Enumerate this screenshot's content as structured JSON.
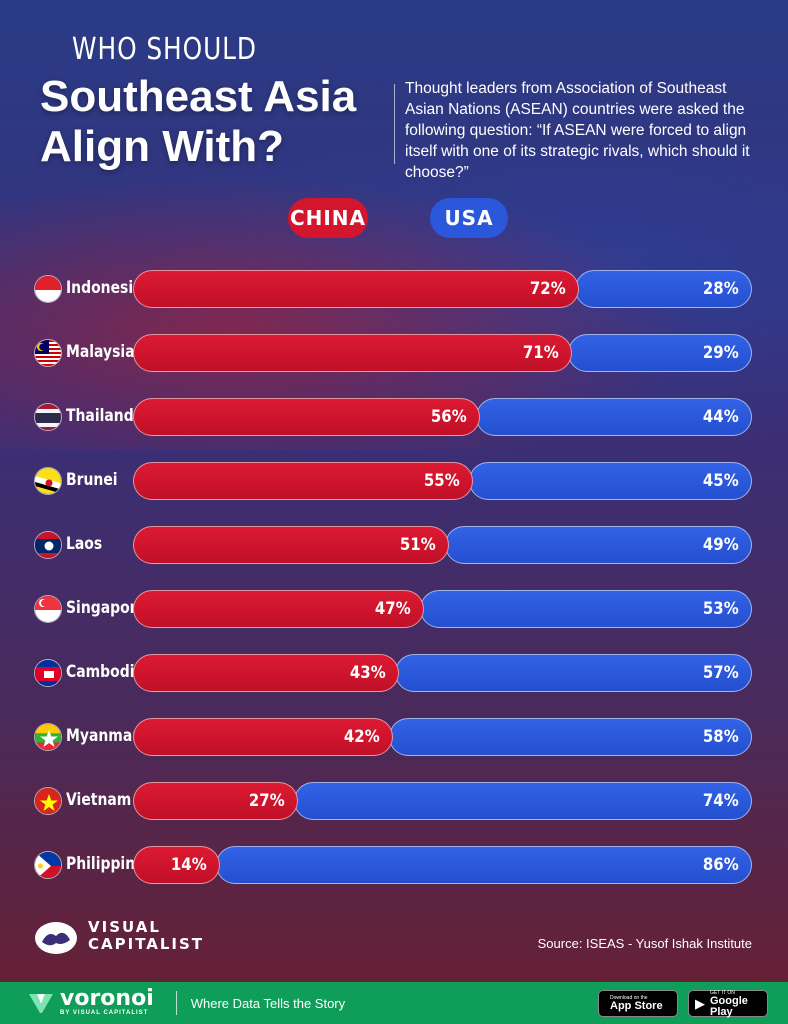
{
  "header": {
    "kicker": "WHO SHOULD",
    "title_line1": "Southeast Asia",
    "title_line2": "Align With?",
    "subtitle": "Thought leaders from Association of Southeast Asian Nations (ASEAN) countries were asked the following question: “If ASEAN were forced to align itself with one of its strategic rivals, which should it choose?”"
  },
  "legend": {
    "china": "CHINA",
    "usa": "USA"
  },
  "colors": {
    "china": "#d3152e",
    "usa": "#2b58db"
  },
  "chart_data": {
    "type": "bar",
    "orientation": "horizontal-stacked",
    "categories": [
      "Indonesia",
      "Malaysia",
      "Thailand",
      "Brunei",
      "Laos",
      "Singapore",
      "Cambodia",
      "Myanmar",
      "Vietnam",
      "Philippines"
    ],
    "series": [
      {
        "name": "CHINA",
        "values": [
          72,
          71,
          56,
          55,
          51,
          47,
          43,
          42,
          27,
          14
        ],
        "labels": [
          "72%",
          "71%",
          "56%",
          "55%",
          "51%",
          "47%",
          "43%",
          "42%",
          "27%",
          "14%"
        ]
      },
      {
        "name": "USA",
        "values": [
          28,
          29,
          44,
          45,
          49,
          53,
          57,
          58,
          74,
          86
        ],
        "labels": [
          "28%",
          "29%",
          "44%",
          "45%",
          "49%",
          "53%",
          "57%",
          "58%",
          "74%",
          "86%"
        ]
      }
    ],
    "flags": [
      "indonesia-flag-icon",
      "malaysia-flag-icon",
      "thailand-flag-icon",
      "brunei-flag-icon",
      "laos-flag-icon",
      "singapore-flag-icon",
      "cambodia-flag-icon",
      "myanmar-flag-icon",
      "vietnam-flag-icon",
      "philippines-flag-icon"
    ],
    "legend_position": "top"
  },
  "branding": {
    "logo_line1": "VISUAL",
    "logo_line2": "CAPITALIST",
    "source": "Source: ISEAS - Yusof Ishak Institute"
  },
  "footer": {
    "brand": "voronoi",
    "brand_sub": "BY VISUAL CAPITALIST",
    "tagline": "Where Data Tells the Story",
    "app_store_small": "Download on the",
    "app_store_big": "App Store",
    "google_small": "GET IT ON",
    "google_big": "Google Play"
  }
}
